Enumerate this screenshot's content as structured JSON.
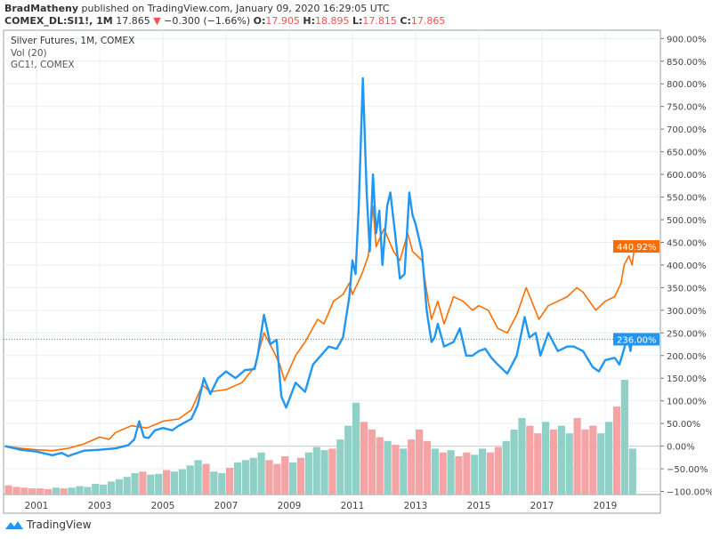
{
  "header": {
    "author": "BradMatheny",
    "published": "published on TradingView.com, January 09, 2020 16:29:05 UTC",
    "symbol": "COMEX_DL:SI1!, 1M",
    "last": "17.865",
    "change": "−0.300 (−1.66%)",
    "o_label": "O:",
    "o": "17.905",
    "h_label": "H:",
    "h": "18.895",
    "l_label": "L:",
    "l": "17.815",
    "c_label": "C:",
    "c": "17.865"
  },
  "legend": [
    "Silver Futures, 1M, COMEX",
    "Vol (20)",
    "GC1!, COMEX"
  ],
  "brand": "TradingView",
  "colors": {
    "silver": "#2196f3",
    "gold": "#ff6d00",
    "vol_up": "#8fd1c6",
    "vol_down": "#f4a4a4",
    "grid": "#e9eff5",
    "down_arrow": "#ef5350"
  },
  "chart_data": {
    "type": "line",
    "ylim": [
      -100,
      900
    ],
    "y_ticks": [
      "900.00%",
      "850.00%",
      "800.00%",
      "750.00%",
      "700.00%",
      "650.00%",
      "600.00%",
      "550.00%",
      "500.00%",
      "450.00%",
      "400.00%",
      "350.00%",
      "300.00%",
      "250.00%",
      "200.00%",
      "150.00%",
      "100.00%",
      "50.00%",
      "0.00%",
      "−50.00%",
      "−100.00%"
    ],
    "y_tick_values": [
      900,
      850,
      800,
      750,
      700,
      650,
      600,
      550,
      500,
      450,
      400,
      350,
      300,
      250,
      200,
      150,
      100,
      50,
      0,
      -50,
      -100
    ],
    "x_ticks": [
      "2001",
      "2003",
      "2005",
      "2007",
      "2009",
      "2011",
      "2013",
      "2015",
      "2017",
      "2019"
    ],
    "xlim": [
      2000.0,
      2020.2
    ],
    "grid": true,
    "last_labels": {
      "silver": "236.00%",
      "gold": "440.92%"
    },
    "series": [
      {
        "name": "Silver Futures, 1M, COMEX",
        "points": [
          [
            2000.0,
            0
          ],
          [
            2000.5,
            -8
          ],
          [
            2001.0,
            -12
          ],
          [
            2001.5,
            -20
          ],
          [
            2001.8,
            -15
          ],
          [
            2002.0,
            -22
          ],
          [
            2002.5,
            -10
          ],
          [
            2003.0,
            -8
          ],
          [
            2003.5,
            -5
          ],
          [
            2003.9,
            2
          ],
          [
            2004.1,
            15
          ],
          [
            2004.25,
            55
          ],
          [
            2004.4,
            20
          ],
          [
            2004.55,
            18
          ],
          [
            2004.75,
            35
          ],
          [
            2005.0,
            40
          ],
          [
            2005.3,
            35
          ],
          [
            2005.5,
            45
          ],
          [
            2005.9,
            60
          ],
          [
            2006.1,
            90
          ],
          [
            2006.3,
            150
          ],
          [
            2006.5,
            115
          ],
          [
            2006.75,
            150
          ],
          [
            2007.0,
            165
          ],
          [
            2007.3,
            150
          ],
          [
            2007.6,
            168
          ],
          [
            2007.9,
            170
          ],
          [
            2008.0,
            200
          ],
          [
            2008.2,
            290
          ],
          [
            2008.4,
            225
          ],
          [
            2008.6,
            235
          ],
          [
            2008.75,
            110
          ],
          [
            2008.9,
            85
          ],
          [
            2009.2,
            140
          ],
          [
            2009.5,
            120
          ],
          [
            2009.75,
            180
          ],
          [
            2010.0,
            200
          ],
          [
            2010.25,
            220
          ],
          [
            2010.5,
            215
          ],
          [
            2010.7,
            240
          ],
          [
            2010.9,
            330
          ],
          [
            2011.0,
            410
          ],
          [
            2011.1,
            380
          ],
          [
            2011.2,
            530
          ],
          [
            2011.33,
            812
          ],
          [
            2011.45,
            560
          ],
          [
            2011.55,
            430
          ],
          [
            2011.65,
            600
          ],
          [
            2011.75,
            470
          ],
          [
            2011.85,
            520
          ],
          [
            2011.95,
            400
          ],
          [
            2012.1,
            530
          ],
          [
            2012.2,
            560
          ],
          [
            2012.35,
            470
          ],
          [
            2012.5,
            370
          ],
          [
            2012.65,
            380
          ],
          [
            2012.8,
            560
          ],
          [
            2012.9,
            510
          ],
          [
            2013.0,
            490
          ],
          [
            2013.2,
            430
          ],
          [
            2013.35,
            300
          ],
          [
            2013.5,
            230
          ],
          [
            2013.6,
            240
          ],
          [
            2013.7,
            270
          ],
          [
            2013.9,
            220
          ],
          [
            2014.2,
            230
          ],
          [
            2014.4,
            260
          ],
          [
            2014.6,
            200
          ],
          [
            2014.8,
            200
          ],
          [
            2015.0,
            210
          ],
          [
            2015.2,
            215
          ],
          [
            2015.4,
            195
          ],
          [
            2015.6,
            180
          ],
          [
            2015.9,
            160
          ],
          [
            2016.2,
            200
          ],
          [
            2016.45,
            285
          ],
          [
            2016.6,
            240
          ],
          [
            2016.8,
            250
          ],
          [
            2016.95,
            200
          ],
          [
            2017.2,
            250
          ],
          [
            2017.5,
            210
          ],
          [
            2017.8,
            220
          ],
          [
            2018.0,
            220
          ],
          [
            2018.3,
            210
          ],
          [
            2018.6,
            175
          ],
          [
            2018.8,
            165
          ],
          [
            2019.0,
            190
          ],
          [
            2019.3,
            195
          ],
          [
            2019.45,
            180
          ],
          [
            2019.6,
            215
          ],
          [
            2019.7,
            245
          ],
          [
            2019.8,
            210
          ],
          [
            2019.87,
            245
          ],
          [
            2019.93,
            236
          ]
        ]
      },
      {
        "name": "GC1!, COMEX",
        "points": [
          [
            2000.0,
            0
          ],
          [
            2000.5,
            -5
          ],
          [
            2001.0,
            -8
          ],
          [
            2001.5,
            -10
          ],
          [
            2002.0,
            -5
          ],
          [
            2002.5,
            5
          ],
          [
            2003.0,
            20
          ],
          [
            2003.3,
            15
          ],
          [
            2003.5,
            30
          ],
          [
            2004.0,
            45
          ],
          [
            2004.5,
            40
          ],
          [
            2005.0,
            55
          ],
          [
            2005.5,
            60
          ],
          [
            2005.9,
            80
          ],
          [
            2006.25,
            135
          ],
          [
            2006.5,
            120
          ],
          [
            2007.0,
            125
          ],
          [
            2007.5,
            140
          ],
          [
            2007.9,
            175
          ],
          [
            2008.2,
            250
          ],
          [
            2008.5,
            210
          ],
          [
            2008.7,
            180
          ],
          [
            2008.85,
            145
          ],
          [
            2009.2,
            200
          ],
          [
            2009.5,
            230
          ],
          [
            2009.9,
            280
          ],
          [
            2010.1,
            270
          ],
          [
            2010.4,
            320
          ],
          [
            2010.7,
            335
          ],
          [
            2010.9,
            360
          ],
          [
            2011.0,
            335
          ],
          [
            2011.3,
            380
          ],
          [
            2011.5,
            420
          ],
          [
            2011.65,
            530
          ],
          [
            2011.75,
            440
          ],
          [
            2012.0,
            480
          ],
          [
            2012.3,
            430
          ],
          [
            2012.5,
            410
          ],
          [
            2012.75,
            470
          ],
          [
            2012.9,
            430
          ],
          [
            2013.2,
            410
          ],
          [
            2013.4,
            320
          ],
          [
            2013.5,
            280
          ],
          [
            2013.7,
            320
          ],
          [
            2013.9,
            270
          ],
          [
            2014.2,
            330
          ],
          [
            2014.5,
            320
          ],
          [
            2014.8,
            300
          ],
          [
            2015.0,
            310
          ],
          [
            2015.3,
            300
          ],
          [
            2015.6,
            260
          ],
          [
            2015.9,
            250
          ],
          [
            2016.2,
            290
          ],
          [
            2016.5,
            350
          ],
          [
            2016.9,
            280
          ],
          [
            2017.2,
            310
          ],
          [
            2017.5,
            320
          ],
          [
            2017.8,
            330
          ],
          [
            2018.1,
            350
          ],
          [
            2018.3,
            340
          ],
          [
            2018.7,
            300
          ],
          [
            2019.0,
            320
          ],
          [
            2019.3,
            330
          ],
          [
            2019.5,
            360
          ],
          [
            2019.6,
            400
          ],
          [
            2019.75,
            420
          ],
          [
            2019.85,
            400
          ],
          [
            2019.93,
            441
          ]
        ]
      }
    ],
    "volume": [
      12,
      10,
      9,
      8,
      8,
      7,
      9,
      8,
      9,
      11,
      10,
      14,
      13,
      17,
      20,
      23,
      28,
      30,
      26,
      27,
      32,
      30,
      33,
      38,
      45,
      40,
      30,
      28,
      35,
      42,
      45,
      48,
      55,
      45,
      40,
      50,
      42,
      48,
      55,
      62,
      58,
      60,
      72,
      90,
      120,
      95,
      85,
      75,
      70,
      65,
      60,
      72,
      85,
      70,
      60,
      55,
      58,
      50,
      55,
      52,
      60,
      55,
      62,
      70,
      85,
      100,
      90,
      80,
      95,
      85,
      90,
      80,
      100,
      85,
      90,
      80,
      95,
      115,
      150,
      60
    ]
  }
}
